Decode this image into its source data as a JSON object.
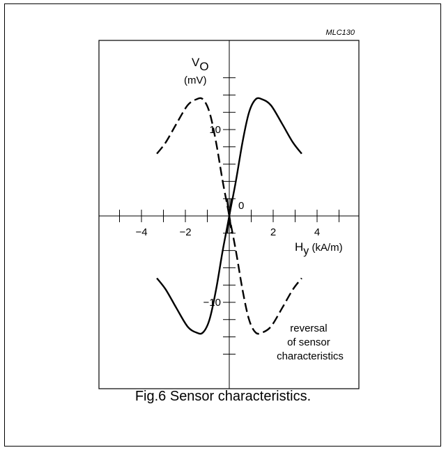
{
  "chart_data": {
    "type": "line",
    "id_label": "MLC130",
    "xlabel_main": "H",
    "xlabel_sub": "y",
    "xlabel_unit": " (kA/m)",
    "ylabel_main": "V",
    "ylabel_sub": "O",
    "ylabel_unit": "(mV)",
    "xlim": [
      -5.5,
      6
    ],
    "ylim": [
      -18,
      20
    ],
    "x_ticks": [
      -5,
      -4,
      -3,
      -2,
      -1,
      1,
      2,
      3,
      4,
      5
    ],
    "x_tick_labels": [
      {
        "value": -4,
        "text": "−4"
      },
      {
        "value": -2,
        "text": "−2"
      },
      {
        "value": 2,
        "text": "2"
      },
      {
        "value": 4,
        "text": "4"
      }
    ],
    "y_ticks": [
      -16,
      -14,
      -12,
      -10,
      -8,
      -6,
      -4,
      -2,
      2,
      4,
      6,
      8,
      10,
      12,
      14,
      16
    ],
    "y_tick_labels": [
      {
        "value": 10,
        "text": "10"
      },
      {
        "value": -10,
        "text": "−10"
      }
    ],
    "origin_label": "0",
    "series": [
      {
        "style": "solid",
        "segments": [
          [
            [
              -0.1,
              -2
            ],
            [
              0.0,
              0
            ],
            [
              0.3,
              4
            ],
            [
              0.6,
              8.5
            ],
            [
              0.9,
              12
            ],
            [
              1.2,
              13.5
            ],
            [
              1.5,
              13.5
            ],
            [
              1.9,
              12.8
            ],
            [
              2.4,
              10.7
            ],
            [
              2.9,
              8.5
            ],
            [
              3.3,
              7.2
            ]
          ],
          [
            [
              -3.3,
              -7.2
            ],
            [
              -2.9,
              -8.5
            ],
            [
              -2.4,
              -10.7
            ],
            [
              -1.9,
              -12.8
            ],
            [
              -1.5,
              -13.5
            ],
            [
              -1.2,
              -13.5
            ],
            [
              -0.9,
              -12
            ],
            [
              -0.6,
              -8.5
            ],
            [
              -0.3,
              -4
            ],
            [
              0.0,
              0
            ],
            [
              0.1,
              2
            ]
          ]
        ]
      },
      {
        "style": "dashed",
        "segments": [
          [
            [
              -3.3,
              7.2
            ],
            [
              -2.9,
              8.5
            ],
            [
              -2.4,
              10.7
            ],
            [
              -1.9,
              12.8
            ],
            [
              -1.5,
              13.5
            ],
            [
              -1.2,
              13.5
            ],
            [
              -0.9,
              12
            ],
            [
              -0.6,
              8.5
            ],
            [
              -0.3,
              4
            ],
            [
              0.0,
              0
            ],
            [
              0.1,
              -2
            ]
          ],
          [
            [
              -0.1,
              2
            ],
            [
              0.0,
              0
            ],
            [
              0.3,
              -4
            ],
            [
              0.6,
              -8.5
            ],
            [
              0.9,
              -12
            ],
            [
              1.2,
              -13.5
            ],
            [
              1.5,
              -13.5
            ],
            [
              1.9,
              -12.8
            ],
            [
              2.4,
              -10.7
            ],
            [
              2.9,
              -8.5
            ],
            [
              3.3,
              -7.2
            ]
          ]
        ]
      }
    ],
    "annotation_lines": [
      "reversal",
      "of sensor",
      "characteristics"
    ]
  },
  "caption": "Fig.6  Sensor characteristics."
}
